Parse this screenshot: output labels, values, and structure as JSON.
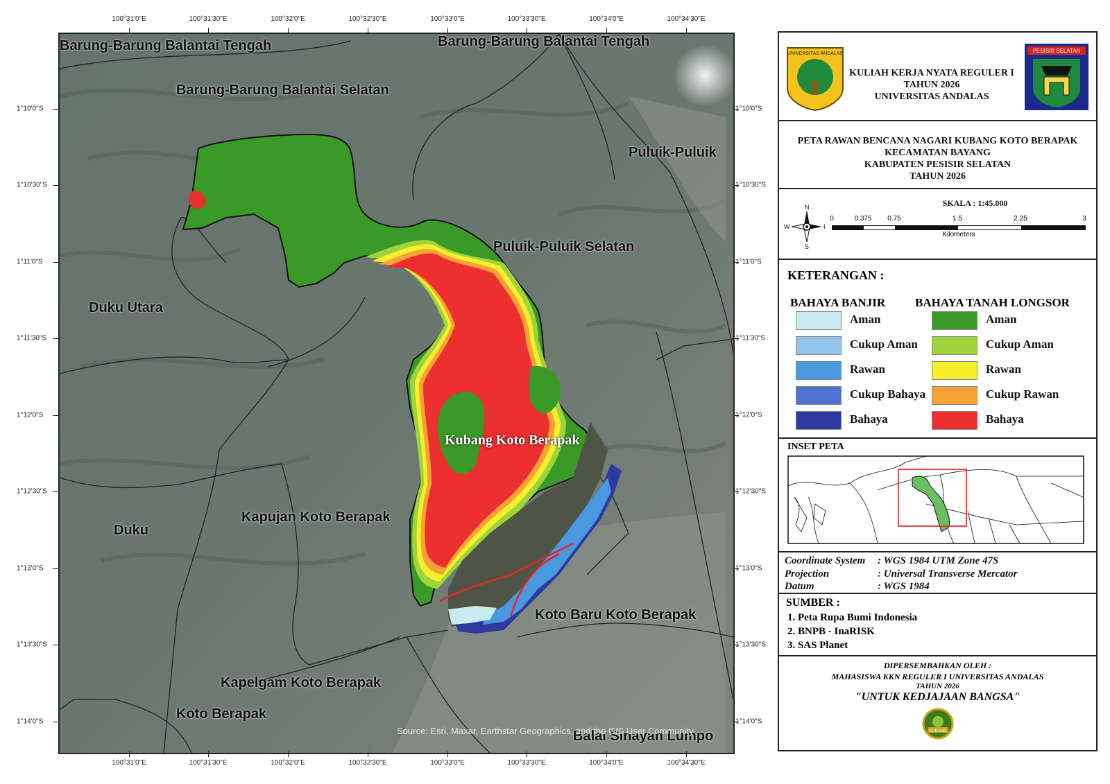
{
  "map": {
    "top_coords": [
      "100°31'0\"E",
      "100°31'30\"E",
      "100°32'0\"E",
      "100°32'30\"E",
      "100°33'0\"E",
      "100°33'30\"E",
      "100°34'0\"E",
      "100°34'30\"E"
    ],
    "bottom_coords": [
      "100°31'0\"E",
      "100°31'30\"E",
      "100°32'0\"E",
      "100°32'30\"E",
      "100°33'0\"E",
      "100°33'30\"E",
      "100°34'0\"E",
      "100°34'30\"E"
    ],
    "left_coords": [
      "1°10'0\"S",
      "1°10'30\"S",
      "1°11'0\"S",
      "1°11'30\"S",
      "1°12'0\"S",
      "1°12'30\"S",
      "1°13'0\"S",
      "1°13'30\"S",
      "1°14'0\"S"
    ],
    "right_coords": [
      "1°10'0\"S",
      "1°10'30\"S",
      "1°11'0\"S",
      "1°11'30\"S",
      "1°12'0\"S",
      "1°12'30\"S",
      "1°13'0\"S",
      "1°13'30\"S",
      "1°14'0\"S"
    ],
    "places": {
      "barung_tengah_left": "Barung-Barung Balantai Tengah",
      "barung_tengah_right": "Barung-Barung Balantai Tengah",
      "barung_selatan": "Barung-Barung Balantai Selatan",
      "puluik": "Puluik-Puluik",
      "puluik_selatan": "Puluik-Puluik Selatan",
      "duku_utara": "Duku Utara",
      "duku": "Duku",
      "kapujan": "Kapujan Koto Berapak",
      "kubang": "Kubang Koto Berapak",
      "koto_baru": "Koto Baru Koto Berapak",
      "kapelgam": "Kapelgam Koto Berapak",
      "koto_berapak": "Koto Berapak",
      "balai": "Balai Sinayan Lumpo"
    },
    "source_text": "Source: Esri, Maxar, Earthstar Geographics, and the GIS User Community"
  },
  "panel": {
    "header": {
      "line1": "KULIAH KERJA NYATA REGULER I",
      "line2": "TAHUN 2026",
      "line3": "UNIVERSITAS ANDALAS",
      "logo_left_text": "UNIVERSITAS ANDALAS",
      "logo_right_text": "PESISIR SELATAN"
    },
    "title": {
      "line1": "PETA RAWAN BENCANA NAGARI KUBANG KOTO BERAPAK",
      "line2": "KECAMATAN BAYANG",
      "line3": "KABUPATEN PESISIR SELATAN",
      "line4": "TAHUN 2026"
    },
    "scale": {
      "label": "SKALA : 1:45.000",
      "ticks": [
        "0",
        "0.375",
        "0.75",
        "1.5",
        "2.25",
        "3"
      ],
      "unit": "Kilometers",
      "compass": {
        "n": "N",
        "s": "S",
        "e": "E",
        "w": "W"
      }
    },
    "legend": {
      "title": "KETERANGAN :",
      "banjir_title": "BAHAYA BANJIR",
      "longsor_title": "BAHAYA TANAH LONGSOR",
      "banjir": [
        {
          "label": "Aman",
          "color": "#c8ecef"
        },
        {
          "label": "Cukup Aman",
          "color": "#93c3ea"
        },
        {
          "label": "Rawan",
          "color": "#4b97e0"
        },
        {
          "label": "Cukup Bahaya",
          "color": "#4f73cf"
        },
        {
          "label": "Bahaya",
          "color": "#2e3a9f"
        }
      ],
      "longsor": [
        {
          "label": "Aman",
          "color": "#3a9a27"
        },
        {
          "label": "Cukup Aman",
          "color": "#9fd43b"
        },
        {
          "label": "Rawan",
          "color": "#f6ef2d"
        },
        {
          "label": "Cukup Rawan",
          "color": "#f6a234"
        },
        {
          "label": "Bahaya",
          "color": "#ec2f2f"
        }
      ]
    },
    "inset": {
      "title": "INSET PETA"
    },
    "crs": {
      "cs_label": "Coordinate System",
      "cs_value": ": WGS 1984 UTM Zone 47S",
      "proj_label": "Projection",
      "proj_value": ": Universal Transverse Mercator",
      "datum_label": "Datum",
      "datum_value": ": WGS 1984"
    },
    "sources": {
      "title": "SUMBER :",
      "items": [
        "1. Peta Rupa Bumi Indonesia",
        "2. BNPB - InaRISK",
        "3. SAS Planet"
      ]
    },
    "footer": {
      "line1": "DIPERSEMBAHKAN OLEH :",
      "line2": "MAHASISWA KKN REGULER I UNIVERSITAS ANDALAS",
      "line3": "TAHUN 2026",
      "motto": "\"UNTUK KEDJAJAAN BANGSA\"",
      "badge_text": "KUBANG"
    }
  },
  "colors": {
    "safe_green": "#3a9a27",
    "danger_red": "#ec2f2f",
    "flood_blue": "#2e3a9f"
  }
}
